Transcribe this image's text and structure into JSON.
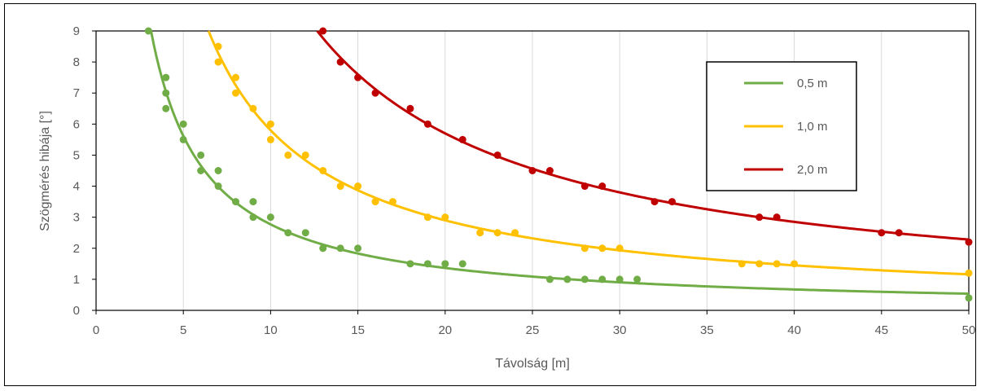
{
  "chart_data": {
    "type": "scatter",
    "title": "",
    "xlabel": "Távolság [m]",
    "ylabel": "Szögmérés hibája [°]",
    "xlim": [
      0,
      50
    ],
    "ylim": [
      0,
      9
    ],
    "xticks": [
      "0",
      "5",
      "10",
      "15",
      "20",
      "25",
      "30",
      "35",
      "40",
      "45",
      "50"
    ],
    "yticks": [
      "0",
      "1",
      "2",
      "3",
      "4",
      "5",
      "6",
      "7",
      "8",
      "9"
    ],
    "grid": "vertical",
    "legend_position": "top-right",
    "series": [
      {
        "name": "0,5 m",
        "color": "#70AD47",
        "points": [
          [
            3,
            9
          ],
          [
            4,
            7.5
          ],
          [
            4,
            7
          ],
          [
            4,
            6.5
          ],
          [
            5,
            6
          ],
          [
            5,
            5.5
          ],
          [
            6,
            5
          ],
          [
            6,
            4.5
          ],
          [
            7,
            4.5
          ],
          [
            7,
            4
          ],
          [
            8,
            3.5
          ],
          [
            9,
            3.5
          ],
          [
            9,
            3
          ],
          [
            10,
            3
          ],
          [
            11,
            2.5
          ],
          [
            12,
            2.5
          ],
          [
            13,
            2
          ],
          [
            14,
            2
          ],
          [
            15,
            2
          ],
          [
            18,
            1.5
          ],
          [
            19,
            1.5
          ],
          [
            20,
            1.5
          ],
          [
            21,
            1.5
          ],
          [
            26,
            1
          ],
          [
            27,
            1
          ],
          [
            28,
            1
          ],
          [
            29,
            1
          ],
          [
            30,
            1
          ],
          [
            31,
            1
          ],
          [
            50,
            0.4
          ]
        ],
        "trend": {
          "type": "power",
          "a": 29.0,
          "b": -1.02
        }
      },
      {
        "name": "1,0 m",
        "color": "#FFC000",
        "points": [
          [
            7,
            8.5
          ],
          [
            7,
            8
          ],
          [
            8,
            7.5
          ],
          [
            8,
            7
          ],
          [
            9,
            6.5
          ],
          [
            10,
            6
          ],
          [
            10,
            5.5
          ],
          [
            11,
            5
          ],
          [
            12,
            5
          ],
          [
            13,
            4.5
          ],
          [
            14,
            4
          ],
          [
            15,
            4
          ],
          [
            16,
            3.5
          ],
          [
            17,
            3.5
          ],
          [
            19,
            3
          ],
          [
            20,
            3
          ],
          [
            22,
            2.5
          ],
          [
            23,
            2.5
          ],
          [
            24,
            2.5
          ],
          [
            28,
            2
          ],
          [
            29,
            2
          ],
          [
            30,
            2
          ],
          [
            37,
            1.5
          ],
          [
            38,
            1.5
          ],
          [
            39,
            1.5
          ],
          [
            40,
            1.5
          ],
          [
            50,
            1.2
          ]
        ],
        "trend": {
          "type": "power",
          "a": 58.0,
          "b": -1.0
        }
      },
      {
        "name": "2,0 m",
        "color": "#C00000",
        "points": [
          [
            13,
            9
          ],
          [
            14,
            8
          ],
          [
            15,
            7.5
          ],
          [
            16,
            7
          ],
          [
            18,
            6.5
          ],
          [
            19,
            6
          ],
          [
            21,
            5.5
          ],
          [
            23,
            5
          ],
          [
            25,
            4.5
          ],
          [
            26,
            4.5
          ],
          [
            28,
            4
          ],
          [
            29,
            4
          ],
          [
            32,
            3.5
          ],
          [
            33,
            3.5
          ],
          [
            38,
            3
          ],
          [
            39,
            3
          ],
          [
            45,
            2.5
          ],
          [
            46,
            2.5
          ],
          [
            50,
            2.2
          ]
        ],
        "trend": {
          "type": "power",
          "a": 114.0,
          "b": -1.0
        }
      }
    ]
  }
}
